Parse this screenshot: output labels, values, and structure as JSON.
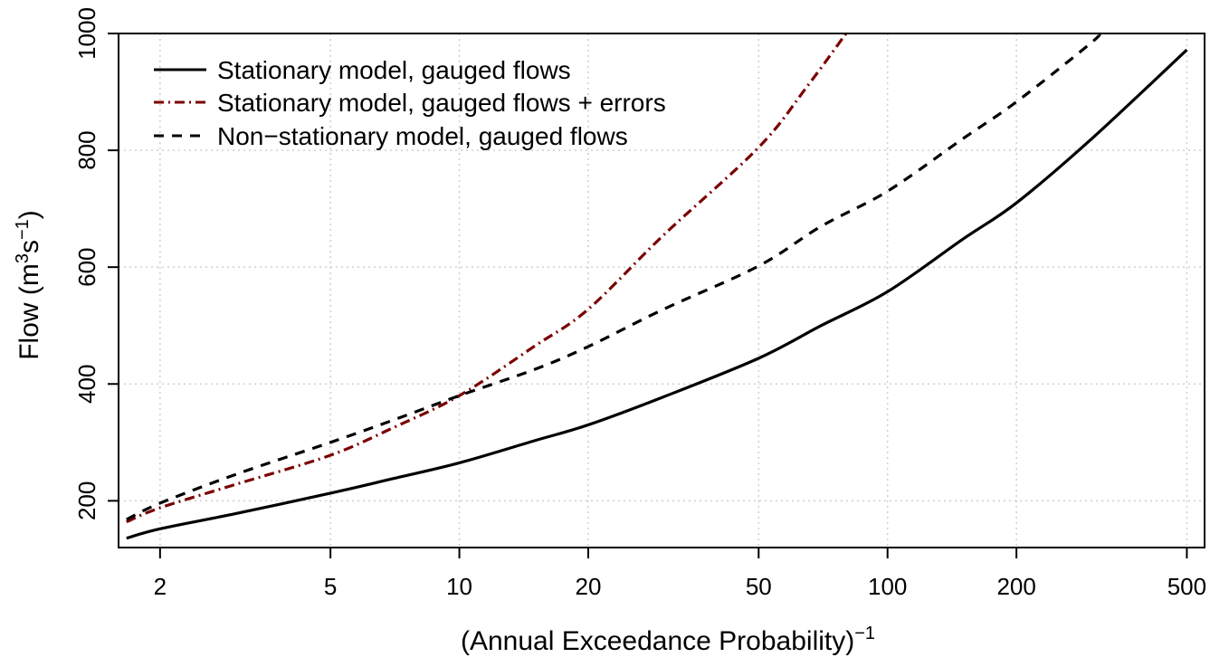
{
  "chart_data": {
    "type": "line",
    "xlabel": "(Annual Exceedance Probability)",
    "xlabel_sup": "−1",
    "ylabel_prefix": "Flow (m",
    "ylabel_sup1": "3",
    "ylabel_mid": "s",
    "ylabel_sup2": "−1",
    "ylabel_suffix": ")",
    "x_scale": "log",
    "xlim": [
      1.6,
      550
    ],
    "ylim": [
      120,
      1000
    ],
    "x_ticks": [
      2,
      5,
      10,
      20,
      50,
      100,
      200,
      500
    ],
    "x_tick_labels": [
      "2",
      "5",
      "10",
      "20",
      "50",
      "100",
      "200",
      "500"
    ],
    "y_ticks": [
      200,
      400,
      600,
      800,
      1000
    ],
    "y_tick_labels": [
      "200",
      "400",
      "600",
      "800",
      "1000"
    ],
    "grid": true,
    "legend_position": "top-left",
    "series": [
      {
        "name": "Stationary model, gauged flows",
        "color": "#000000",
        "dash": "solid",
        "x": [
          1.67,
          2,
          3,
          5,
          7,
          10,
          15,
          20,
          30,
          50,
          70,
          100,
          150,
          200,
          300,
          500
        ],
        "y": [
          136,
          152,
          178,
          213,
          238,
          265,
          303,
          330,
          378,
          444,
          500,
          558,
          648,
          710,
          820,
          972
        ]
      },
      {
        "name": "Stationary model, gauged flows + errors",
        "color": "#7a0000",
        "dash": "dashdot",
        "x": [
          1.67,
          2,
          3,
          5,
          7,
          10,
          15,
          20,
          30,
          50,
          65,
          80
        ],
        "y": [
          164,
          188,
          228,
          278,
          325,
          380,
          465,
          528,
          655,
          805,
          910,
          1000
        ]
      },
      {
        "name": "Non−stationary model, gauged flows",
        "color": "#000000",
        "dash": "dashed",
        "x": [
          1.67,
          2,
          3,
          5,
          7,
          10,
          15,
          20,
          30,
          50,
          70,
          100,
          150,
          200,
          300,
          310
        ],
        "y": [
          168,
          196,
          245,
          300,
          338,
          380,
          425,
          464,
          528,
          602,
          670,
          730,
          820,
          883,
          985,
          1000
        ]
      }
    ]
  }
}
